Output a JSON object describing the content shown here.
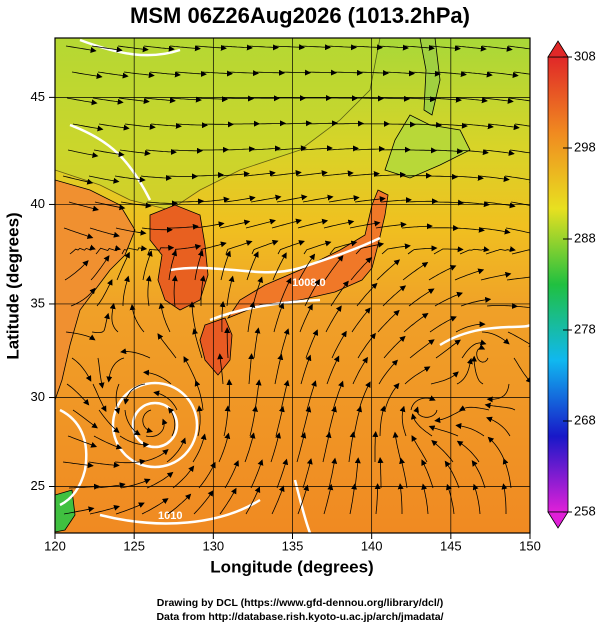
{
  "title": "MSM 06Z26Aug2026 (1013.2hPa)",
  "map": {
    "xlabel": "Longitude (degrees)",
    "ylabel": "Latitude  (degrees)",
    "projection": "mercator",
    "xlim": [
      120,
      150
    ],
    "ylim": [
      22.3,
      47.6
    ],
    "xticks": [
      120,
      125,
      130,
      135,
      140,
      145,
      150
    ],
    "yticks": [
      25,
      30,
      35,
      40,
      45
    ],
    "grid": true,
    "contour_labels": [
      "1008.0",
      "1010"
    ]
  },
  "colorbar": {
    "lim": [
      258,
      308
    ],
    "ticks": [
      258,
      268,
      278,
      288,
      298,
      308
    ],
    "colors": [
      "#e020d8",
      "#1818c8",
      "#10b8f0",
      "#20c040",
      "#e8e020",
      "#f08a20",
      "#e02828"
    ]
  },
  "footer": [
    "Drawing by DCL (https://www.gfd-dennou.org/library/dcl/)",
    "Data from http://database.rish.kyoto-u.ac.jp/arch/jmadata/"
  ]
}
